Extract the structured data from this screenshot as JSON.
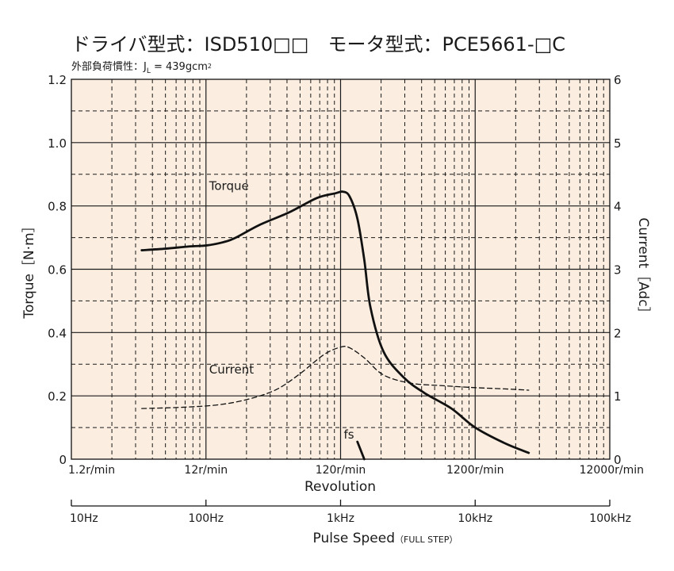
{
  "header": {
    "title": "ドライバ型式：ISD510□□　モータ型式：PCE5661-□C",
    "subtitle_prefix": "外部負荷慣性：J",
    "subtitle_sub": "L",
    "subtitle_suffix": " = 439gcm",
    "subtitle_sup": "2"
  },
  "colors": {
    "plot_background": "#fbeee0",
    "line": "#111111",
    "grid": "#1a1a1a"
  },
  "chart_data": {
    "type": "line",
    "x_scale": "log",
    "xlabel": "Revolution",
    "x_ticks": [
      "1.2r/min",
      "12r/min",
      "120r/min",
      "1200r/min",
      "12000r/min"
    ],
    "x_range_r_per_min": [
      1.2,
      12000
    ],
    "x2label": "Pulse Speed",
    "x2label_note": "（FULL STEP）",
    "x2_ticks": [
      "10Hz",
      "100Hz",
      "1kHz",
      "10kHz",
      "100kHz"
    ],
    "ylabel": "Torque［N·m］",
    "y_ticks": [
      "0",
      "0.2",
      "0.4",
      "0.6",
      "0.8",
      "1.0",
      "1.2"
    ],
    "ylim": [
      0,
      1.2
    ],
    "y2label": "Current［Adc］",
    "y2_ticks": [
      "0",
      "1",
      "2",
      "3",
      "4",
      "5",
      "6"
    ],
    "y2lim": [
      0,
      6
    ],
    "grid": true,
    "series": [
      {
        "name": "Torque",
        "axis": "left",
        "style": "solid",
        "x": [
          4.0,
          6.0,
          9.0,
          12.0,
          16.0,
          20.0,
          30.0,
          50.0,
          80.0,
          110.0,
          125.0,
          140.0,
          160.0,
          180.0,
          200.0,
          250.0,
          350.0,
          500.0,
          800.0,
          1200.0,
          2000.0,
          3000.0
        ],
        "y": [
          0.66,
          0.665,
          0.672,
          0.675,
          0.685,
          0.7,
          0.74,
          0.78,
          0.825,
          0.84,
          0.845,
          0.83,
          0.76,
          0.63,
          0.48,
          0.34,
          0.26,
          0.21,
          0.16,
          0.1,
          0.05,
          0.02
        ]
      },
      {
        "name": "Current",
        "axis": "right",
        "style": "dashed",
        "x": [
          4.0,
          8.0,
          15.0,
          25.0,
          40.0,
          60.0,
          90.0,
          120.0,
          140.0,
          180.0,
          250.0,
          400.0,
          700.0,
          1200.0,
          2000.0,
          3000.0
        ],
        "y": [
          0.8,
          0.82,
          0.86,
          0.95,
          1.1,
          1.35,
          1.65,
          1.77,
          1.76,
          1.6,
          1.33,
          1.2,
          1.16,
          1.13,
          1.11,
          1.09
        ]
      }
    ],
    "annotations": [
      {
        "text": "Torque",
        "x": 12.0,
        "y": 0.85
      },
      {
        "text": "Current",
        "x": 12.0,
        "y": 0.27
      },
      {
        "text": "fs",
        "x": 120.0,
        "y": 0.065
      }
    ],
    "fs_marker": {
      "label": "fs",
      "x": [
        160.0,
        180.0
      ],
      "y": [
        0.055,
        0.0
      ]
    }
  }
}
